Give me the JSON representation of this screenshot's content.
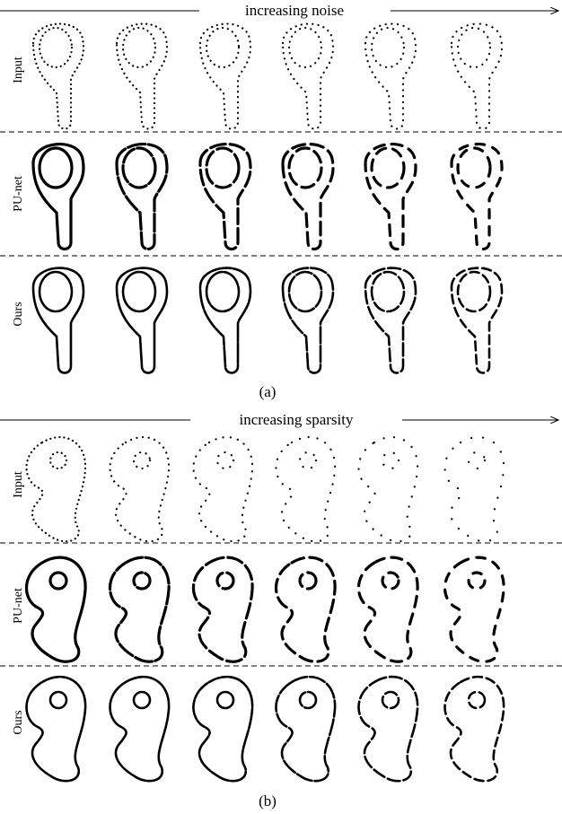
{
  "panels": [
    {
      "header": "increasing noise",
      "rows": [
        "Input",
        "PU-net",
        "Ours"
      ],
      "caption": "(a)"
    },
    {
      "header": "increasing sparsity",
      "rows": [
        "Input",
        "PU-net",
        "Ours"
      ],
      "caption": "(b)"
    }
  ]
}
